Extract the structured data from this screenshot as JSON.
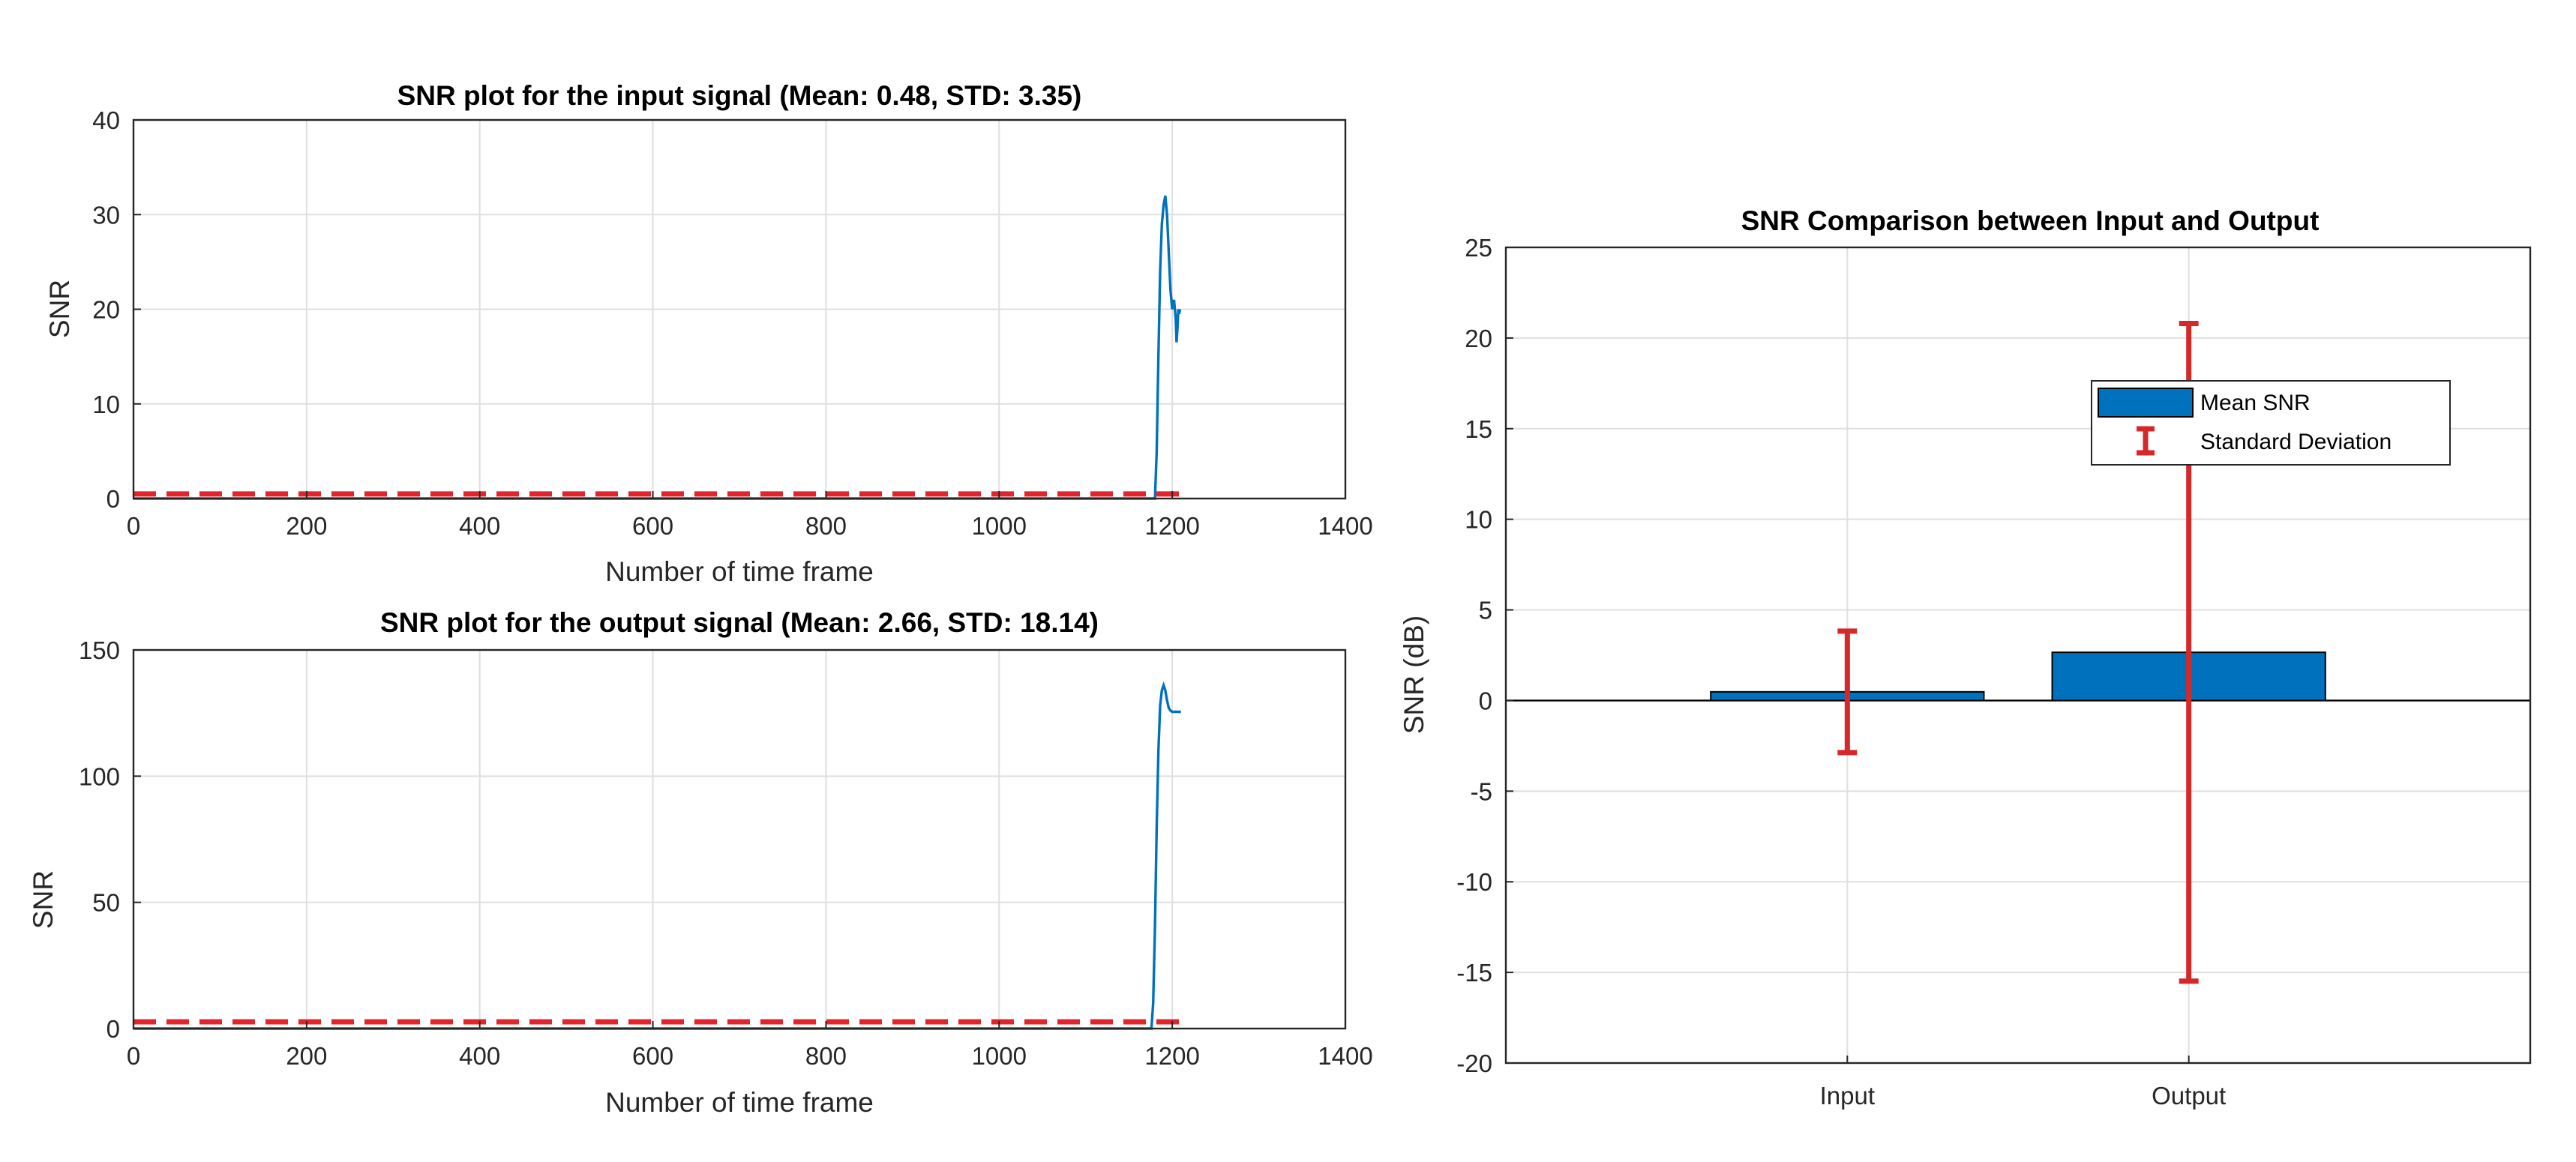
{
  "chart_data": [
    {
      "id": "input",
      "type": "line",
      "title": "SNR plot for the input signal (Mean: 0.48, STD: 3.35)",
      "xlabel": "Number of time frame",
      "ylabel": "SNR",
      "xlim": [
        0,
        1400
      ],
      "ylim": [
        0,
        40
      ],
      "xticks": [
        0,
        200,
        400,
        600,
        800,
        1000,
        1200,
        1400
      ],
      "yticks": [
        0,
        10,
        20,
        30,
        40
      ],
      "grid": true,
      "series": [
        {
          "style": "solid",
          "color": "#0072BD",
          "points": [
            [
              0,
              0
            ],
            [
              1180,
              0
            ],
            [
              1182,
              5
            ],
            [
              1184,
              15
            ],
            [
              1186,
              24
            ],
            [
              1188,
              29
            ],
            [
              1190,
              31
            ],
            [
              1192,
              32
            ],
            [
              1194,
              30
            ],
            [
              1196,
              26
            ],
            [
              1198,
              22
            ],
            [
              1200,
              20
            ],
            [
              1202,
              21
            ],
            [
              1204,
              19
            ],
            [
              1205,
              16.5
            ],
            [
              1206,
              18
            ],
            [
              1207,
              20
            ],
            [
              1208,
              19.5
            ],
            [
              1209,
              20
            ]
          ]
        },
        {
          "style": "dashed",
          "color": "#E3242B",
          "points": [
            [
              0,
              0.48
            ],
            [
              1212,
              0.48
            ]
          ]
        }
      ]
    },
    {
      "id": "output",
      "type": "line",
      "title": "SNR plot for the output signal (Mean: 2.66, STD: 18.14)",
      "xlabel": "Number of time frame",
      "ylabel": "SNR",
      "xlim": [
        0,
        1400
      ],
      "ylim": [
        0,
        150
      ],
      "xticks": [
        0,
        200,
        400,
        600,
        800,
        1000,
        1200,
        1400
      ],
      "yticks": [
        0,
        50,
        100,
        150
      ],
      "grid": true,
      "series": [
        {
          "style": "solid",
          "color": "#0072BD",
          "points": [
            [
              0,
              0
            ],
            [
              1176,
              0
            ],
            [
              1178,
              10
            ],
            [
              1180,
              40
            ],
            [
              1182,
              80
            ],
            [
              1184,
              110
            ],
            [
              1186,
              128
            ],
            [
              1188,
              134
            ],
            [
              1190,
              136
            ],
            [
              1192,
              134
            ],
            [
              1194,
              130
            ],
            [
              1196,
              127
            ],
            [
              1198,
              126
            ],
            [
              1200,
              125.5
            ],
            [
              1205,
              125.5
            ],
            [
              1210,
              125.5
            ]
          ]
        },
        {
          "style": "dashed",
          "color": "#E3242B",
          "points": [
            [
              0,
              2.66
            ],
            [
              1212,
              2.66
            ]
          ]
        }
      ]
    },
    {
      "id": "comparison",
      "type": "bar",
      "title": "SNR Comparison between Input and Output",
      "ylabel": "SNR (dB)",
      "categories": [
        "Input",
        "Output"
      ],
      "ylim": [
        -20,
        25
      ],
      "yticks": [
        -20,
        -15,
        -10,
        -5,
        0,
        5,
        10,
        15,
        20,
        25
      ],
      "grid": true,
      "series": [
        {
          "name": "Mean SNR",
          "values": [
            0.48,
            2.66
          ],
          "color": "#0072BD"
        }
      ],
      "error_bars": {
        "name": "Standard Deviation",
        "values": [
          3.35,
          18.14
        ],
        "color": "#D62828"
      },
      "legend": {
        "placement": "top-right",
        "entries": [
          "Mean SNR",
          "Standard Deviation"
        ]
      }
    }
  ]
}
